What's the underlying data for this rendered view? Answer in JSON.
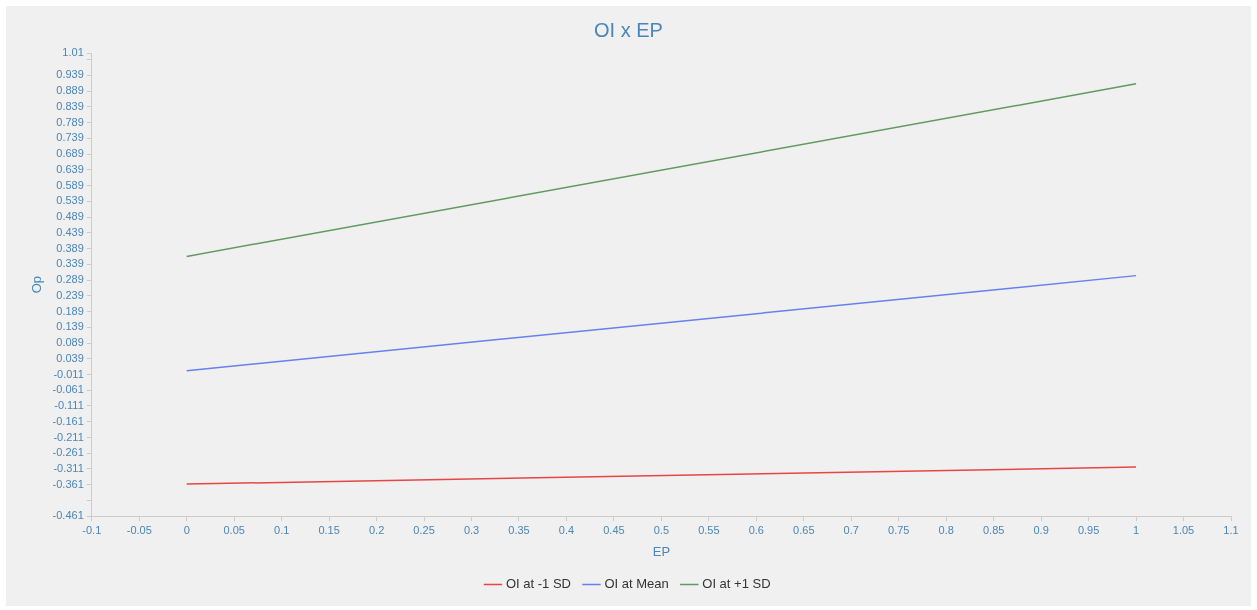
{
  "chart_data": {
    "type": "line",
    "title": "OI x EP",
    "xlabel": "EP",
    "ylabel": "Op",
    "xlim": [
      -0.1,
      1.1
    ],
    "xticks": [
      -0.1,
      -0.05,
      0,
      0.05,
      0.1,
      0.15,
      0.2,
      0.25,
      0.3,
      0.35,
      0.4,
      0.45,
      0.5,
      0.55,
      0.6,
      0.65,
      0.7,
      0.75,
      0.8,
      0.85,
      0.9,
      0.95,
      1,
      1.05,
      1.1
    ],
    "ylim": [
      -0.461,
      1.01
    ],
    "yticks": [
      -0.461,
      {
        "value": -0.411,
        "label": null
      },
      -0.361,
      -0.311,
      -0.261,
      -0.211,
      -0.161,
      -0.111,
      -0.061,
      -0.011,
      0.039,
      0.089,
      0.139,
      0.189,
      0.239,
      0.289,
      0.339,
      0.389,
      0.439,
      0.489,
      0.539,
      0.589,
      0.639,
      0.689,
      0.739,
      0.789,
      0.839,
      0.889,
      0.939,
      {
        "value": 0.989,
        "label": null
      },
      1.01
    ],
    "x": [
      0,
      1
    ],
    "series": [
      {
        "name": "OI at -1 SD",
        "color": "#e84545",
        "values": [
          -0.359,
          -0.305
        ]
      },
      {
        "name": "OI at Mean",
        "color": "#6680ee",
        "values": [
          0.001,
          0.303
        ]
      },
      {
        "name": "OI at +1 SD",
        "color": "#5f9a5f",
        "values": [
          0.364,
          0.912
        ]
      }
    ],
    "legend": "bottom",
    "grid": false,
    "marker": "none",
    "line_style": "solid"
  }
}
